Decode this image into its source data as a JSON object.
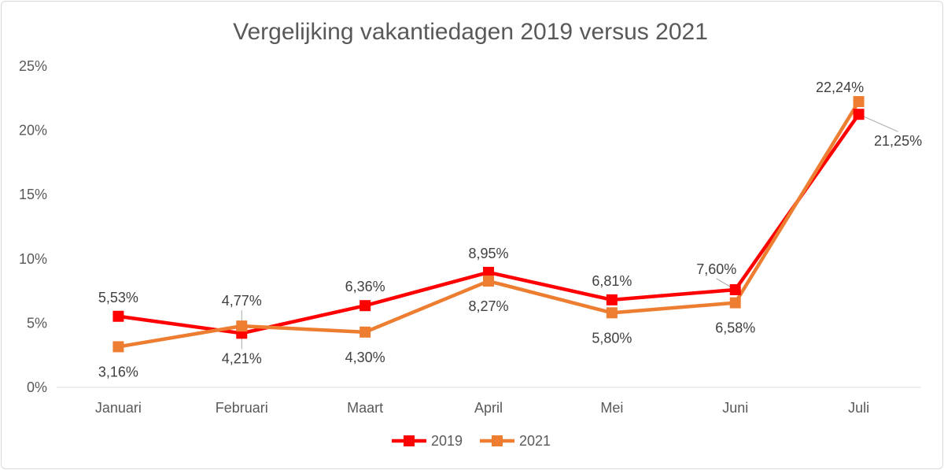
{
  "chart_data": {
    "type": "line",
    "title": "Vergelijking vakantiedagen 2019 versus 2021",
    "categories": [
      "Januari",
      "Februari",
      "Maart",
      "April",
      "Mei",
      "Juni",
      "Juli"
    ],
    "ylim": [
      0,
      25
    ],
    "yticks": [
      0,
      5,
      10,
      15,
      20,
      25
    ],
    "ytick_labels": [
      "0%",
      "5%",
      "10%",
      "15%",
      "20%",
      "25%"
    ],
    "grid": false,
    "legend_position": "bottom",
    "series": [
      {
        "name": "2019",
        "color": "#ff0000",
        "values": [
          5.53,
          4.21,
          6.36,
          8.95,
          6.81,
          7.6,
          21.25
        ],
        "labels": [
          "5,53%",
          "4,21%",
          "6,36%",
          "8,95%",
          "6,81%",
          "7,60%",
          "21,25%"
        ]
      },
      {
        "name": "2021",
        "color": "#ed7d31",
        "values": [
          3.16,
          4.77,
          4.3,
          8.27,
          5.8,
          6.58,
          22.24
        ],
        "labels": [
          "3,16%",
          "4,77%",
          "4,30%",
          "8,27%",
          "5,80%",
          "6,58%",
          "22,24%"
        ]
      }
    ]
  }
}
